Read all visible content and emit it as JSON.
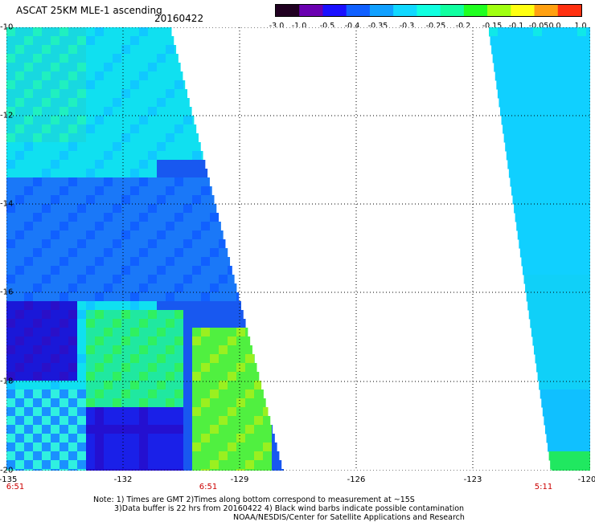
{
  "header": {
    "title": "ASCAT 25KM MLE-1 ascending",
    "date": "20160422"
  },
  "colorbar": {
    "labels": [
      "-3.0",
      "-1.0",
      "-0.5",
      "-0.4",
      "-0.35",
      "-0.3",
      "-0.25",
      "-0.2",
      "-0.15",
      "-0.1",
      "-0.05",
      "0.0",
      "1.0"
    ],
    "colors": [
      "#200020",
      "#6a00b0",
      "#1a10ff",
      "#1060ff",
      "#10a0ff",
      "#10d8ff",
      "#10ffe0",
      "#10ffa0",
      "#20ff20",
      "#a0ff10",
      "#ffff10",
      "#ffa010",
      "#ff3010"
    ]
  },
  "map": {
    "lat_labels": [
      "-10",
      "-12",
      "-14",
      "-16",
      "-18",
      "-20"
    ],
    "lon_labels": [
      "-135",
      "-132",
      "-129",
      "-126",
      "-123",
      "-120"
    ],
    "time_labels": [
      "6:51",
      "6:51",
      "5:11"
    ]
  },
  "notes": {
    "line1": "Note: 1) Times are GMT 2)Times along bottom correspond to measurement at ~15S",
    "line2": "3)Data buffer is 22 hrs from 20160422 4) Black wind barbs indicate possible contamination",
    "line3": "NOAA/NESDIS/Center for Satellite Applications and Research"
  }
}
